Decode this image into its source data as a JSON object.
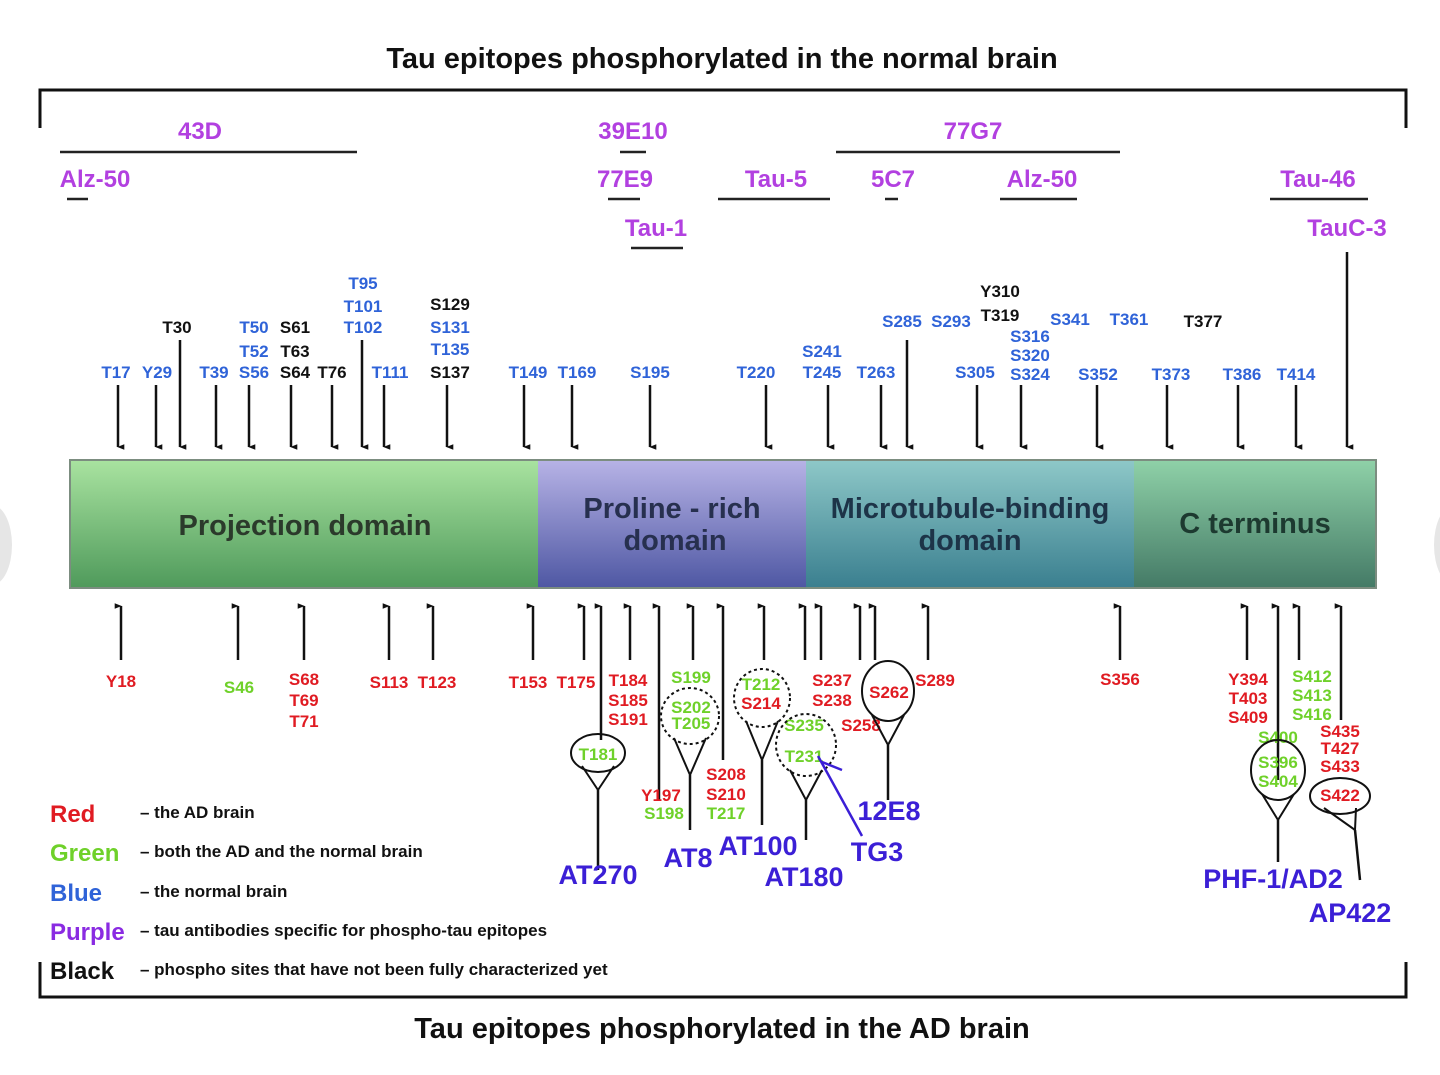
{
  "titles": {
    "top": "Tau epitopes phosphorylated in the normal brain",
    "bottom": "Tau epitopes phosphorylated in the AD brain"
  },
  "colors": {
    "red": "#e01b22",
    "green": "#6fd12a",
    "blue": "#2f63d8",
    "purple": "#8a2be2",
    "purple_text": "#b240e0",
    "black": "#111111",
    "label_blue": "#3b1fd6"
  },
  "domains": [
    {
      "label": "Projection domain",
      "color_top": "#a9e3a0",
      "color_bottom": "#4f9a5b"
    },
    {
      "label": "Proline - rich domain",
      "color_top": "#b7b3e6",
      "color_bottom": "#4e57a3"
    },
    {
      "label": "Microtubule-binding domain",
      "color_top": "#8ec8c8",
      "color_bottom": "#3a7f8f"
    },
    {
      "label": "C terminus",
      "color_top": "#8fd1a8",
      "color_bottom": "#447a66"
    }
  ],
  "top_antibodies": [
    "43D",
    "39E10",
    "77G7",
    "Alz-50",
    "77E9",
    "Tau-5",
    "5C7",
    "Alz-50",
    "Tau-46",
    "Tau-1",
    "TauC-3"
  ],
  "top_sites": {
    "blue": [
      "T17",
      "Y29",
      "T50",
      "T52",
      "T39",
      "S56",
      "T95",
      "T101",
      "T102",
      "T111",
      "S131",
      "T135",
      "T149",
      "T169",
      "S195",
      "T220",
      "S241",
      "T245",
      "T263",
      "S285",
      "S293",
      "S305",
      "S316",
      "S320",
      "S324",
      "S341",
      "T361",
      "S352",
      "T373",
      "T386",
      "T414"
    ],
    "black": [
      "T30",
      "S61",
      "T63",
      "S64",
      "T76",
      "S129",
      "S137",
      "Y310",
      "T319",
      "T377"
    ]
  },
  "bottom_sites": {
    "red": [
      "Y18",
      "S68",
      "T69",
      "T71",
      "S113",
      "T123",
      "T153",
      "T175",
      "T184",
      "S185",
      "S191",
      "Y197",
      "S208",
      "S210",
      "S214",
      "S237",
      "S238",
      "S258",
      "S262",
      "S289",
      "S356",
      "Y394",
      "T403",
      "S409",
      "S435",
      "T427",
      "S433",
      "S422"
    ],
    "green": [
      "S46",
      "T181",
      "S199",
      "S202",
      "T205",
      "S198",
      "T217",
      "T212",
      "S235",
      "T231",
      "S412",
      "S413",
      "S416",
      "S400",
      "S396",
      "S404"
    ]
  },
  "bottom_antibodies": [
    "AT270",
    "AT8",
    "AT100",
    "AT180",
    "TG3",
    "12E8",
    "PHF-1/AD2",
    "AP422"
  ],
  "legend": [
    {
      "key": "Red",
      "text": "– the AD brain",
      "color": "#e01b22"
    },
    {
      "key": "Green",
      "text": "– both the AD and the normal brain",
      "color": "#6fd12a"
    },
    {
      "key": "Blue",
      "text": "– the normal brain",
      "color": "#2f63d8"
    },
    {
      "key": "Purple",
      "text": "– tau antibodies specific for phospho-tau epitopes",
      "color": "#8a2be2"
    },
    {
      "key": "Black",
      "text": "– phospho sites that have not been fully characterized yet",
      "color": "#111111"
    }
  ]
}
